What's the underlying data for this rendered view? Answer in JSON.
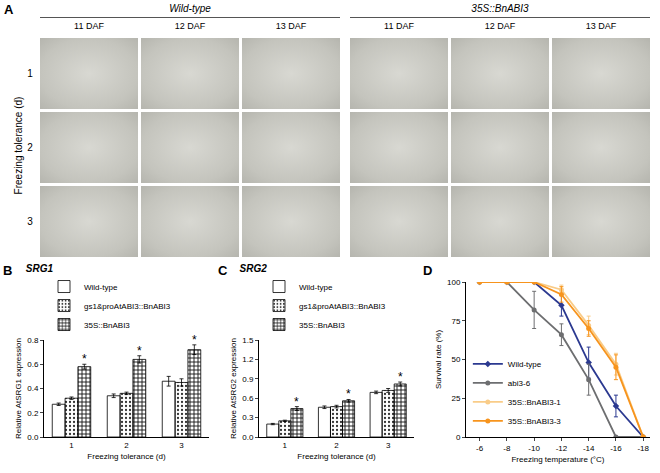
{
  "photo_panel": {
    "panel": "A",
    "row_title": "Freezing tolerance (d)",
    "rows": [
      "1",
      "2",
      "3"
    ],
    "groups": [
      {
        "title": "Wild-type",
        "columns": [
          "11 DAF",
          "12 DAF",
          "13 DAF"
        ]
      },
      {
        "title": "35S::BnABI3",
        "columns": [
          "11 DAF",
          "12 DAF",
          "13 DAF"
        ]
      }
    ]
  },
  "chart_data": [
    {
      "panel": "B",
      "type": "bar",
      "title": "SRG1",
      "x_label": "Freezing tolerance (d)",
      "y_label": "Relative AtSRG1 expression",
      "categories": [
        "1",
        "2",
        "3"
      ],
      "ylim": [
        0,
        0.8
      ],
      "yticks": [
        {
          "value": 0,
          "label": "0.0"
        },
        0.2,
        0.4,
        0.6,
        0.8
      ],
      "grid": false,
      "legend": "top left",
      "series": [
        {
          "name": "Wild-type",
          "color": "#ffffff",
          "marker": "solid",
          "values": [
            0.27,
            0.34,
            0.46
          ],
          "errors": [
            0.01,
            0.015,
            0.04
          ]
        },
        {
          "name": "gs1&proAtABI3::BnABI3",
          "color": "#eeeeee",
          "marker": "dots",
          "values": [
            0.32,
            0.36,
            0.45
          ],
          "errors": [
            0.01,
            0.01,
            0.03
          ]
        },
        {
          "name": "35S::BnABI3",
          "color": "#777777",
          "marker": "checks",
          "values": [
            0.58,
            0.64,
            0.72
          ],
          "errors": [
            0.02,
            0.03,
            0.04
          ]
        }
      ],
      "annotations": [
        {
          "text": "*",
          "category": "1",
          "series": "35S::BnABI3"
        },
        {
          "text": "*",
          "category": "2",
          "series": "35S::BnABI3"
        },
        {
          "text": "*",
          "category": "3",
          "series": "35S::BnABI3"
        }
      ]
    },
    {
      "panel": "C",
      "type": "bar",
      "title": "SRG2",
      "x_label": "Freezing tolerance (d)",
      "y_label": "Relative AtSRG2 expression",
      "categories": [
        "1",
        "2",
        "3"
      ],
      "ylim": [
        0,
        1.5
      ],
      "yticks": [
        {
          "value": 0,
          "label": "0.0"
        },
        0.3,
        0.6,
        0.9,
        1.2,
        1.5
      ],
      "grid": false,
      "legend": "top left",
      "series": [
        {
          "name": "Wild-type",
          "color": "#ffffff",
          "marker": "solid",
          "values": [
            0.2,
            0.46,
            0.69
          ],
          "errors": [
            0.01,
            0.02,
            0.02
          ]
        },
        {
          "name": "gs1&proAtABI3::BnABI3",
          "color": "#eeeeee",
          "marker": "dots",
          "values": [
            0.25,
            0.47,
            0.72
          ],
          "errors": [
            0.01,
            0.02,
            0.03
          ]
        },
        {
          "name": "35S::BnABI3",
          "color": "#777777",
          "marker": "checks",
          "values": [
            0.44,
            0.56,
            0.82
          ],
          "errors": [
            0.03,
            0.02,
            0.03
          ]
        }
      ],
      "annotations": [
        {
          "text": "*",
          "category": "1",
          "series": "35S::BnABI3"
        },
        {
          "text": "*",
          "category": "2",
          "series": "35S::BnABI3"
        },
        {
          "text": "*",
          "category": "3",
          "series": "35S::BnABI3"
        }
      ]
    },
    {
      "panel": "D",
      "type": "line",
      "x_label": "Freezing temperature (°C)",
      "y_label": "Survival rate (%)",
      "x": [
        -6,
        -8,
        -10,
        -12,
        -14,
        -16,
        -18
      ],
      "xlim": [
        -5,
        -18.5
      ],
      "xticks": [
        -6,
        -8,
        -10,
        -12,
        -14,
        -16,
        -18
      ],
      "ylim": [
        0,
        100
      ],
      "yticks": [
        0,
        25,
        50,
        75,
        100
      ],
      "grid": false,
      "legend": "bottom left",
      "series": [
        {
          "name": "Wild-type",
          "color": "#2b3990",
          "marker": "diamond",
          "values": [
            100,
            100,
            100,
            85,
            48,
            20,
            0
          ],
          "errors": [
            0,
            0,
            0,
            7,
            10,
            7,
            0
          ]
        },
        {
          "name": "abi3-6",
          "color": "#6d6e70",
          "marker": "circle",
          "values": [
            100,
            100,
            82,
            66,
            37,
            0,
            0
          ],
          "errors": [
            0,
            0,
            12,
            7,
            10,
            0,
            0
          ]
        },
        {
          "name": "35S::BnABI3-1",
          "color": "#f9cc88",
          "marker": "circle",
          "values": [
            100,
            100,
            100,
            95,
            72,
            47,
            0
          ],
          "errors": [
            0,
            0,
            0,
            3,
            6,
            7,
            0
          ]
        },
        {
          "name": "35S::BnABI3-3",
          "color": "#f7941d",
          "marker": "circle",
          "values": [
            100,
            100,
            100,
            92,
            70,
            45,
            0
          ],
          "errors": [
            0,
            0,
            0,
            5,
            5,
            8,
            0
          ]
        }
      ]
    }
  ]
}
